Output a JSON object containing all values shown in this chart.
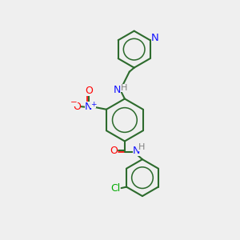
{
  "bg_color": "#efefef",
  "bond_color": "#2d6b2d",
  "bond_width": 1.5,
  "N_color": "#1414ff",
  "O_color": "#ff0000",
  "Cl_color": "#00aa00",
  "H_color": "#808080",
  "label_fontsize": 8.5,
  "figsize": [
    3.0,
    3.0
  ],
  "dpi": 100,
  "xlim": [
    0,
    10
  ],
  "ylim": [
    0,
    10
  ]
}
